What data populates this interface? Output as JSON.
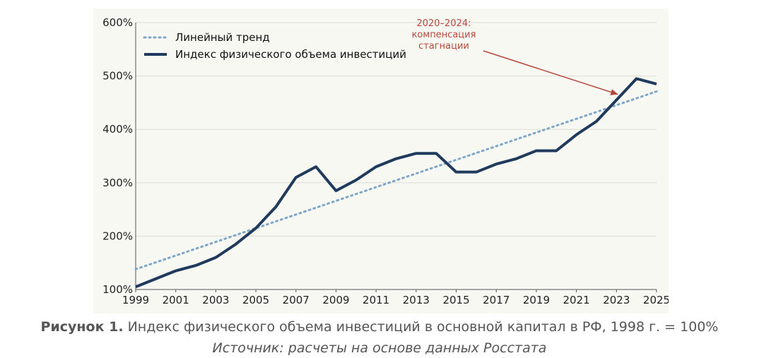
{
  "chart_data": {
    "type": "line",
    "x": [
      1999,
      2000,
      2001,
      2002,
      2003,
      2004,
      2005,
      2006,
      2007,
      2008,
      2009,
      2010,
      2011,
      2012,
      2013,
      2014,
      2015,
      2016,
      2017,
      2018,
      2019,
      2020,
      2021,
      2022,
      2023,
      2024,
      2025
    ],
    "x_ticks": [
      "1999",
      "2001",
      "2003",
      "2005",
      "2007",
      "2009",
      "2011",
      "2013",
      "2015",
      "2017",
      "2019",
      "2021",
      "2023",
      "2025"
    ],
    "y_ticks": [
      "100%",
      "200%",
      "300%",
      "400%",
      "500%",
      "600%"
    ],
    "ylim": [
      100,
      600
    ],
    "xlim": [
      1999,
      2025
    ],
    "grid": "horizontal",
    "legend_placement": "top-left",
    "series": [
      {
        "name": "Линейный тренд",
        "style": "dotted",
        "color": "#7fa6c9",
        "x": [
          1999,
          2025
        ],
        "values": [
          138,
          471
        ]
      },
      {
        "name": "Индекс физического объема инвестиций",
        "style": "solid",
        "color": "#1f3a5c",
        "values": [
          105,
          120,
          135,
          145,
          160,
          185,
          215,
          255,
          310,
          330,
          285,
          305,
          330,
          345,
          355,
          355,
          320,
          320,
          335,
          345,
          360,
          360,
          390,
          415,
          455,
          495,
          485
        ]
      }
    ],
    "annotation": {
      "lines": [
        "2020–2024:",
        "компенсация",
        "стагнации"
      ],
      "color": "#b5473a",
      "arrow_to": {
        "x": 2023,
        "y": 455
      }
    }
  },
  "caption": {
    "label": "Рисунок 1.",
    "text": " Индекс физического объема инвестиций в основной капитал в РФ, 1998 г. = 100%"
  },
  "source": "Источник: расчеты на основе данных Росстата"
}
